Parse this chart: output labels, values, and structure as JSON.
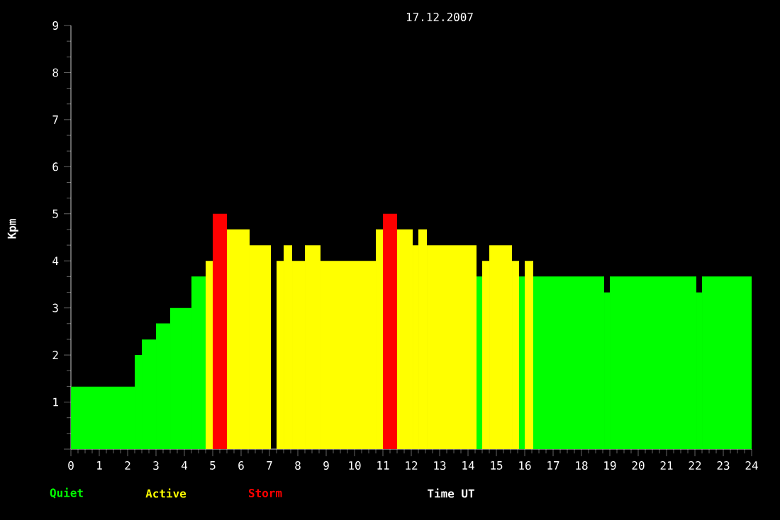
{
  "chart_data": {
    "type": "histogram",
    "title": "17.12.2007",
    "xlabel": "Time UT",
    "ylabel": "Kpm",
    "bins": [
      0,
      2.25,
      2.5,
      3.0,
      3.5,
      4.25,
      4.75,
      5.0,
      5.5,
      6.3,
      7.05,
      7.25,
      7.5,
      7.8,
      8.25,
      8.8,
      10.75,
      11.0,
      11.5,
      12.05,
      12.25,
      12.55,
      14.3,
      14.5,
      14.75,
      15.55,
      15.8,
      16.0,
      16.3,
      18.8,
      19.0,
      22.05,
      22.25,
      24
    ],
    "series": [
      {
        "name": "Quiet",
        "color": "#00ff00",
        "values": [
          1.33,
          2,
          2.33,
          2.67,
          3,
          3.67,
          null,
          null,
          null,
          null,
          null,
          null,
          null,
          null,
          null,
          null,
          null,
          null,
          null,
          null,
          null,
          null,
          3.67,
          null,
          null,
          null,
          3.67,
          null,
          3.67,
          3.33,
          3.67,
          3.33,
          3.67
        ]
      },
      {
        "name": "Active",
        "color": "#ffff00",
        "values": [
          null,
          null,
          null,
          null,
          null,
          null,
          4,
          null,
          4.67,
          4.33,
          null,
          4,
          4.33,
          4,
          4.33,
          4,
          4.67,
          null,
          4.67,
          4.33,
          4.67,
          4.33,
          null,
          4,
          4.33,
          4,
          null,
          4,
          null,
          null,
          null,
          null,
          null
        ]
      },
      {
        "name": "Storm",
        "color": "#ff0000",
        "values": [
          null,
          null,
          null,
          null,
          null,
          null,
          null,
          5,
          null,
          null,
          null,
          null,
          null,
          null,
          null,
          null,
          null,
          5,
          null,
          null,
          null,
          null,
          null,
          null,
          null,
          null,
          null,
          null,
          null,
          null,
          null,
          null,
          null
        ]
      }
    ],
    "xlim": [
      0,
      24
    ],
    "xticks": [
      0,
      1,
      2,
      3,
      4,
      5,
      6,
      7,
      8,
      9,
      10,
      11,
      12,
      13,
      14,
      15,
      16,
      17,
      18,
      19,
      20,
      21,
      22,
      23,
      24
    ],
    "ylim": [
      0,
      9
    ],
    "yticks": [
      {
        "value": 0,
        "label": null
      },
      1,
      2,
      3,
      4,
      5,
      6,
      7,
      8,
      9
    ],
    "legend": "bottom"
  }
}
